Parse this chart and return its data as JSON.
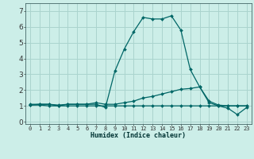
{
  "xlabel": "Humidex (Indice chaleur)",
  "bg_color": "#cceee8",
  "grid_color": "#aad4ce",
  "line_color": "#006666",
  "x_values": [
    0,
    1,
    2,
    3,
    4,
    5,
    6,
    7,
    8,
    9,
    10,
    11,
    12,
    13,
    14,
    15,
    16,
    17,
    18,
    19,
    20,
    21,
    22,
    23
  ],
  "series1": [
    1.1,
    1.1,
    1.1,
    1.0,
    1.1,
    1.1,
    1.1,
    1.1,
    0.9,
    3.2,
    4.6,
    5.7,
    6.6,
    6.5,
    6.5,
    6.7,
    5.8,
    3.3,
    2.2,
    1.2,
    1.0,
    0.85,
    0.45,
    0.9
  ],
  "series2": [
    1.05,
    1.1,
    1.1,
    1.05,
    1.1,
    1.1,
    1.1,
    1.2,
    1.1,
    1.1,
    1.2,
    1.3,
    1.5,
    1.6,
    1.75,
    1.9,
    2.05,
    2.1,
    2.2,
    1.3,
    1.05,
    1.0,
    1.0,
    1.0
  ],
  "series3": [
    1.05,
    1.05,
    1.0,
    1.0,
    1.0,
    1.0,
    1.0,
    1.0,
    1.0,
    1.0,
    1.0,
    1.0,
    1.0,
    1.0,
    1.0,
    1.0,
    1.0,
    1.0,
    1.0,
    1.0,
    1.0,
    1.0,
    1.0,
    1.0
  ],
  "ylim": [
    -0.15,
    7.5
  ],
  "xlim": [
    -0.5,
    23.5
  ],
  "yticks": [
    0,
    1,
    2,
    3,
    4,
    5,
    6,
    7
  ],
  "xticks": [
    0,
    1,
    2,
    3,
    4,
    5,
    6,
    7,
    8,
    9,
    10,
    11,
    12,
    13,
    14,
    15,
    16,
    17,
    18,
    19,
    20,
    21,
    22,
    23
  ],
  "xlabel_fontsize": 6.0,
  "ytick_fontsize": 6.5,
  "xtick_fontsize": 5.0,
  "marker_size": 2.0,
  "linewidth": 0.9
}
